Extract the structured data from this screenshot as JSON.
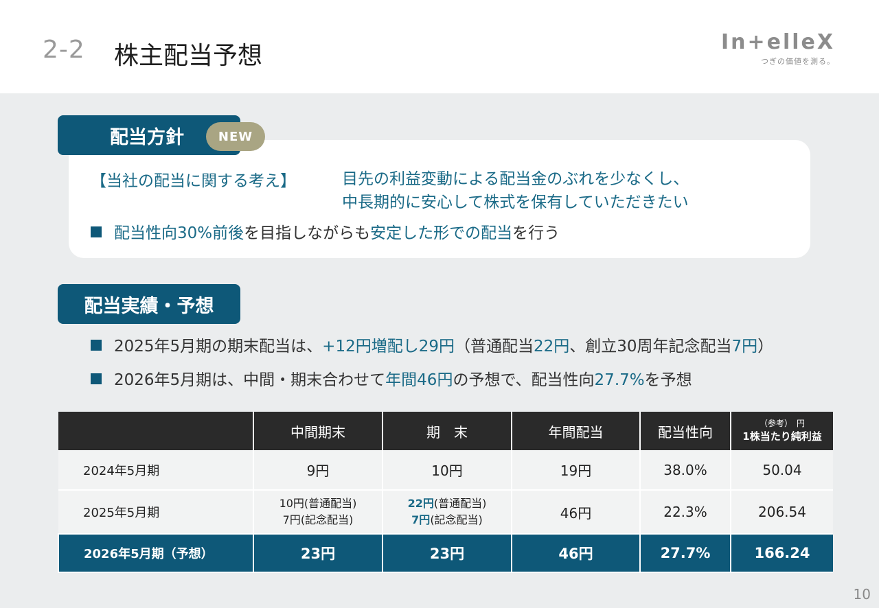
{
  "header": {
    "section_number": "2-2",
    "title": "株主配当予想",
    "logo_text": "In+elleX",
    "logo_tagline": "つぎの価値を測る。"
  },
  "policy": {
    "label": "配当方針",
    "badge": "NEW",
    "thoughts_title": "【当社の配当に関する考え】",
    "thoughts_line1": "目先の利益変動による配当金のぶれを少なくし、",
    "thoughts_line2": "中長期的に安心して株式を保有していただきたい",
    "bullet_part1": "配当性向30%前後",
    "bullet_part2": "を目指しながらも",
    "bullet_part3": "安定した形での配当",
    "bullet_part4": "を行う"
  },
  "results": {
    "label": "配当実績・予想",
    "bullet1_a": "2025年5月期の期末配当は、",
    "bullet1_b": "+12円増配し29円",
    "bullet1_c": "（普通配当",
    "bullet1_d": "22円",
    "bullet1_e": "、創立30周年記念配当",
    "bullet1_f": "7円",
    "bullet1_g": "）",
    "bullet2_a": "2026年5月期は、中間・期末合わせて",
    "bullet2_b": "年間46円",
    "bullet2_c": "の予想で、配当性向",
    "bullet2_d": "27.7%",
    "bullet2_e": "を予想"
  },
  "table": {
    "headers": {
      "interim": "中間期末",
      "year_end": "期　末",
      "annual": "年間配当",
      "payout": "配当性向",
      "eps_ref": "（参考）　円",
      "eps": "1株当たり純利益"
    },
    "rows": [
      {
        "period": "2024年5月期",
        "interim": "9円",
        "year_end": "10円",
        "annual": "19円",
        "payout": "38.0%",
        "eps": "50.04"
      },
      {
        "period": "2025年5月期",
        "interim_line1": "10円(普通配当)",
        "interim_line2": "7円(記念配当)",
        "year_end_line1_value": "22円",
        "year_end_line1_note": "(普通配当)",
        "year_end_line2_value": "7円",
        "year_end_line2_note": "(記念配当)",
        "annual": "46円",
        "payout": "22.3%",
        "eps": "206.54"
      },
      {
        "period": "2026年5月期（予想）",
        "interim": "23円",
        "year_end": "23円",
        "annual": "46円",
        "payout": "27.7%",
        "eps": "166.24"
      }
    ]
  },
  "page_number": "10",
  "colors": {
    "accent": "#0e5878",
    "teal_text": "#1a6a87",
    "badge": "#a9a583",
    "header_dark": "#2a2a2a"
  }
}
